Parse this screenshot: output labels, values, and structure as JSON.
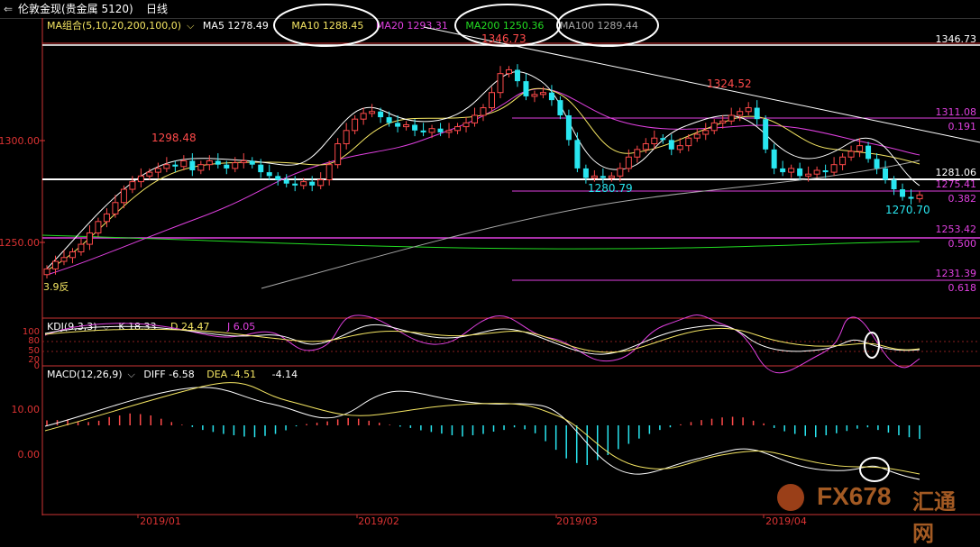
{
  "window": {
    "title": "伦敦金现(贵金属 5120)",
    "period": "日线"
  },
  "colors": {
    "up": "#ff4a4a",
    "down": "#29e6f0",
    "ma5": "#ffffff",
    "ma10": "#f5e663",
    "ma20": "#e040e0",
    "ma200": "#22dd22",
    "ma100": "#a8a8a8",
    "fib": "#e040e0",
    "axis": "#cc3333"
  },
  "main_legend": {
    "group_label": "MA组合(5,10,20,200,100,0)",
    "ma5": "MA5 1278.49",
    "ma10": "MA10 1288.45",
    "ma20": "MA20 1293.31",
    "ma200": "MA200 1250.36",
    "ma100": "MA100 1289.44"
  },
  "kdj_legend": {
    "label": "KDJ(9,3,3)",
    "k": "K 18.33",
    "d": "D 24.47",
    "j": "J 6.05"
  },
  "macd_legend": {
    "label": "MACD(12,26,9)",
    "diff": "DIFF -6.58",
    "dea": "DEA -4.51",
    "macd": "-4.14"
  },
  "watermark": {
    "brand": "FX678",
    "cn": "汇通网"
  },
  "chart_data": {
    "type": "candlestick",
    "price_ylim": [
      1222,
      1356
    ],
    "price_ticks": [
      "1300.00",
      "1250.00"
    ],
    "x_labels": [
      "2019/01",
      "2019/02",
      "2019/03",
      "2019/04"
    ],
    "annotations": {
      "high": "1346.73",
      "high_label": "1346.73",
      "mid_high": "1324.52",
      "jan_high": "1298.48",
      "mar_low": "1280.79",
      "apr_low": "1270.70",
      "corner": "3.9反"
    },
    "support_line": {
      "value": 1281.06,
      "label": "1281.06"
    },
    "fib_levels": [
      {
        "value": 1311.08,
        "price": "1311.08",
        "ratio": "0.191"
      },
      {
        "value": 1275.41,
        "price": "1275.41",
        "ratio": "0.382"
      },
      {
        "value": 1253.42,
        "price": "1253.42",
        "ratio": "0.500"
      },
      {
        "value": 1231.39,
        "price": "1231.39",
        "ratio": "0.618"
      }
    ],
    "kdj_ylim": [
      0,
      110
    ],
    "kdj_ticks": [
      "100",
      "80",
      "50",
      "20",
      "0"
    ],
    "macd_ylim": [
      -27,
      18
    ],
    "macd_ticks": [
      "10.00",
      "0.00"
    ]
  }
}
